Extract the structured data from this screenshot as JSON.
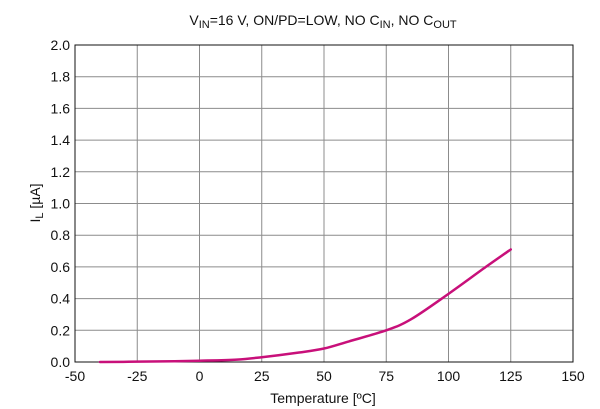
{
  "chart_data": {
    "type": "line",
    "title": {
      "parts": [
        {
          "text": "V",
          "sub": false
        },
        {
          "text": "IN",
          "sub": true
        },
        {
          "text": "=16 V, ON/PD=LOW, NO C",
          "sub": false
        },
        {
          "text": "IN",
          "sub": true
        },
        {
          "text": ", NO C",
          "sub": false
        },
        {
          "text": "OUT",
          "sub": true
        }
      ]
    },
    "xlabel": "Temperature [ºC]",
    "ylabel": {
      "main": "I",
      "sub": "L",
      "unit": "  [µA]"
    },
    "xlim": [
      -50,
      150
    ],
    "ylim": [
      0,
      2.0
    ],
    "xticks": [
      -50,
      -25,
      0,
      25,
      50,
      75,
      100,
      125,
      150
    ],
    "yticks": [
      0.0,
      0.2,
      0.4,
      0.6,
      0.8,
      1.0,
      1.2,
      1.4,
      1.6,
      1.8,
      2.0
    ],
    "xtick_labels": [
      "-50",
      "-25",
      "0",
      "25",
      "50",
      "75",
      "100",
      "125",
      "150"
    ],
    "ytick_labels": [
      "0.0",
      "0.2",
      "0.4",
      "0.6",
      "0.8",
      "1.0",
      "1.2",
      "1.4",
      "1.6",
      "1.8",
      "2.0"
    ],
    "grid": true,
    "series": [
      {
        "color": "#c8107a",
        "x": [
          -40,
          -25,
          -10,
          0,
          15,
          25,
          40,
          50,
          60,
          75,
          85,
          100,
          115,
          125
        ],
        "y": [
          0.0,
          0.002,
          0.005,
          0.008,
          0.015,
          0.03,
          0.06,
          0.085,
          0.13,
          0.2,
          0.27,
          0.43,
          0.6,
          0.71
        ]
      }
    ]
  }
}
